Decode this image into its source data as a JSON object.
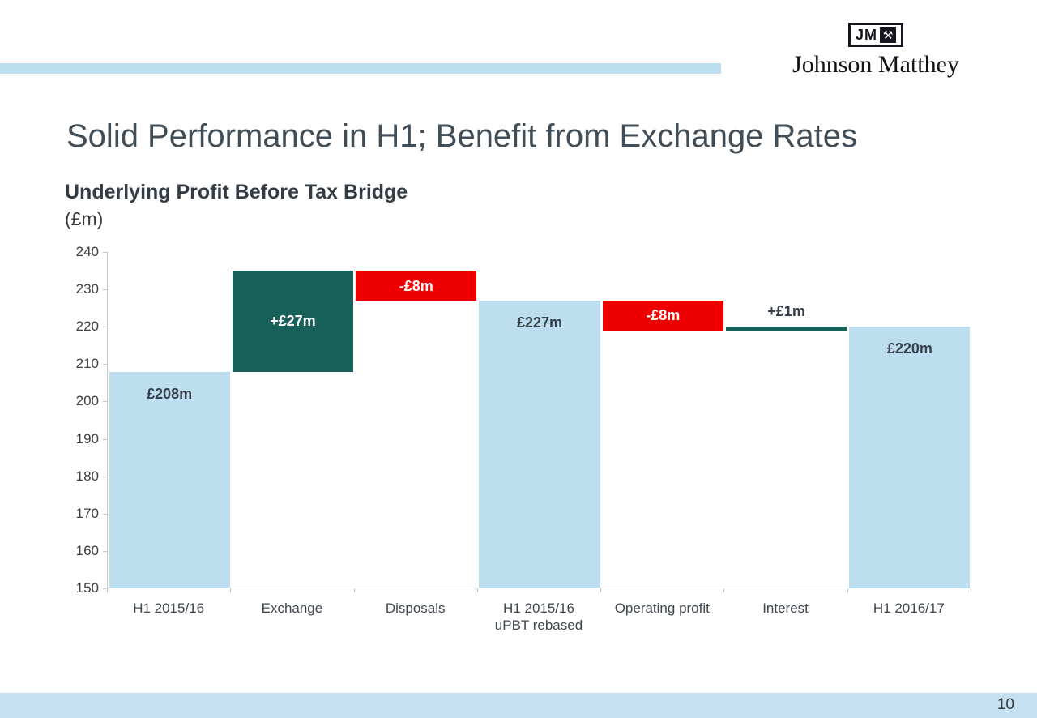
{
  "page": {
    "title": "Solid Performance in H1; Benefit from Exchange Rates",
    "page_number": "10"
  },
  "logo": {
    "jm_text": "JM",
    "hammers_icon": "⚒",
    "company_name": "Johnson Matthey"
  },
  "chart_data": {
    "type": "bar",
    "subtype": "waterfall",
    "title": "Underlying Profit Before Tax Bridge",
    "unit_label": "(£m)",
    "ylim": [
      150,
      240
    ],
    "ytick_step": 10,
    "grid": false,
    "legend": "none",
    "colors": {
      "base": "#BDDEEF",
      "increase": "#18605A",
      "decrease": "#EE0000",
      "dark_label": "#37424E",
      "white_label": "#FFFFFF"
    },
    "bars": [
      {
        "category": "H1 2015/16",
        "start": 150,
        "end": 208,
        "value": 208,
        "value_label": "£208m",
        "color": "base",
        "label_style": "dark-inside-top"
      },
      {
        "category": "Exchange",
        "start": 208,
        "end": 235,
        "value": 27,
        "value_label": "+£27m",
        "color": "increase",
        "label_style": "white-inside"
      },
      {
        "category": "Disposals",
        "start": 235,
        "end": 227,
        "value": -8,
        "value_label": "-£8m",
        "color": "decrease",
        "label_style": "white-inside"
      },
      {
        "category": "H1 2015/16\nuPBT rebased",
        "start": 150,
        "end": 227,
        "value": 227,
        "value_label": "£227m",
        "color": "base",
        "label_style": "dark-inside-top"
      },
      {
        "category": "Operating profit",
        "start": 227,
        "end": 219,
        "value": -8,
        "value_label": "-£8m",
        "color": "decrease",
        "label_style": "white-inside"
      },
      {
        "category": "Interest",
        "start": 219,
        "end": 220,
        "value": 1,
        "value_label": "+£1m",
        "color": "increase",
        "label_style": "dark-above"
      },
      {
        "category": "H1 2016/17",
        "start": 150,
        "end": 220,
        "value": 220,
        "value_label": "£220m",
        "color": "base",
        "label_style": "dark-inside-top"
      }
    ]
  }
}
